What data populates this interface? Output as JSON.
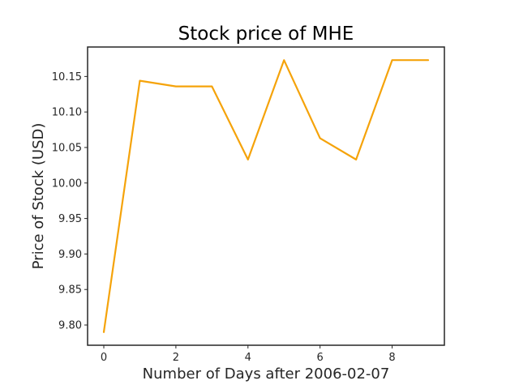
{
  "chart_data": {
    "type": "line",
    "title": "Stock price of MHE",
    "xlabel": "Number of Days after 2006-02-07",
    "ylabel": "Price of Stock (USD)",
    "x": [
      0,
      1,
      2,
      3,
      4,
      5,
      6,
      7,
      8,
      9
    ],
    "series": [
      {
        "values": [
          9.79,
          10.144,
          10.136,
          10.136,
          10.033,
          10.173,
          10.063,
          10.033,
          10.173,
          10.173
        ],
        "color": "#f5a30a"
      }
    ],
    "xlim": [
      -0.45,
      9.45
    ],
    "ylim": [
      9.7715,
      10.1915
    ],
    "x_ticks": [
      "0",
      "2",
      "4",
      "6",
      "8"
    ],
    "x_tick_values": [
      0,
      2,
      4,
      6,
      8
    ],
    "y_ticks": [
      "9.80",
      "9.85",
      "9.90",
      "9.95",
      "10.00",
      "10.05",
      "10.10",
      "10.15"
    ],
    "y_tick_values": [
      9.8,
      9.85,
      9.9,
      9.95,
      10.0,
      10.05,
      10.1,
      10.15
    ],
    "grid": false,
    "legend": "none"
  }
}
